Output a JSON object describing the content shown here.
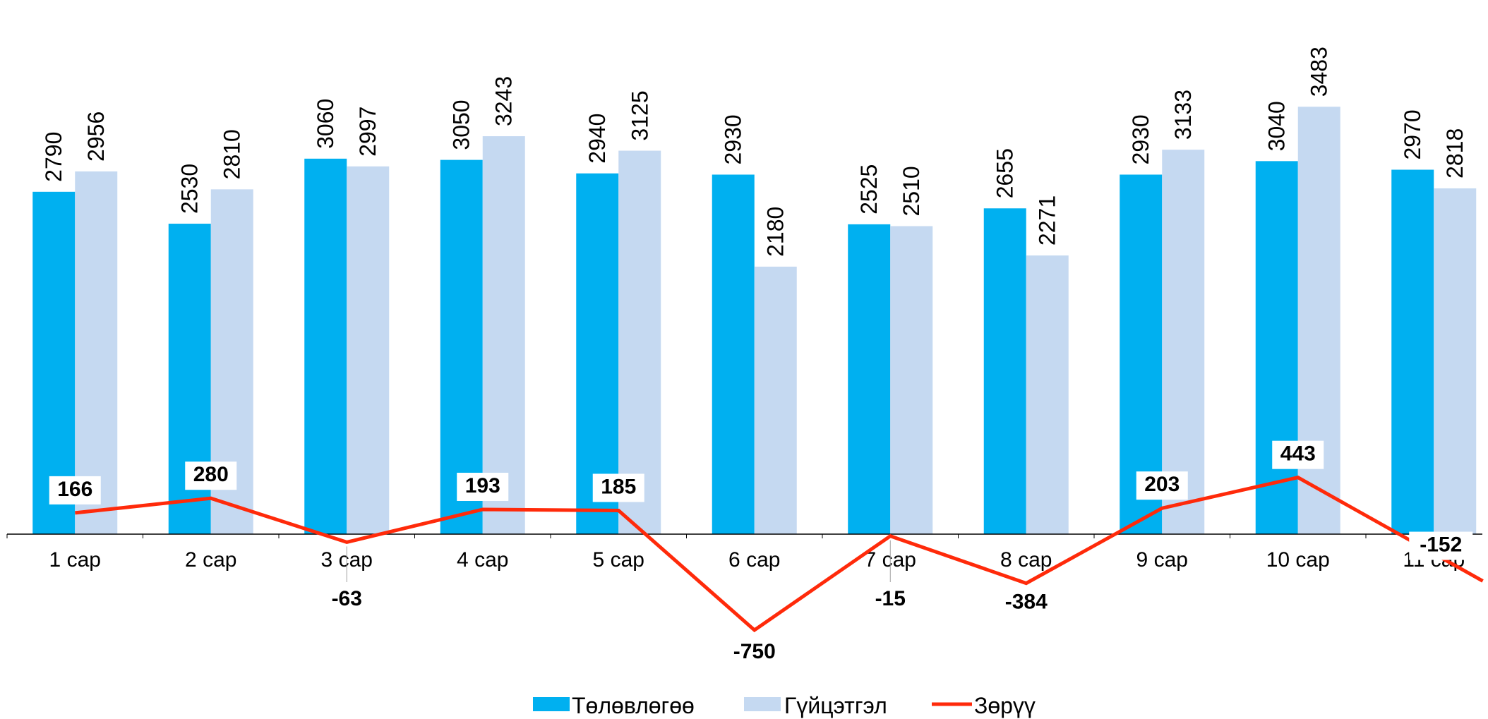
{
  "chart_data": {
    "type": "bar",
    "categories": [
      "1 сар",
      "2 сар",
      "3 сар",
      "4 сар",
      "5 сар",
      "6 сар",
      "7 сар",
      "8 сар",
      "9 сар",
      "10 сар",
      "11 сар"
    ],
    "series": [
      {
        "name": "Төлөвлөгөө",
        "type": "bar",
        "color": "#00b0f0",
        "values": [
          2790,
          2530,
          3060,
          3050,
          2940,
          2930,
          2525,
          2655,
          2930,
          3040,
          2970
        ]
      },
      {
        "name": "Гүйцэтгэл",
        "type": "bar",
        "color": "#c5d9f1",
        "values": [
          2956,
          2810,
          2997,
          3243,
          3125,
          2180,
          2510,
          2271,
          3133,
          3483,
          2818
        ]
      },
      {
        "name": "Зөрүү",
        "type": "line",
        "color": "#ff2a0a",
        "values": [
          166,
          280,
          -63,
          193,
          185,
          -750,
          -15,
          -384,
          203,
          443,
          -152
        ]
      }
    ],
    "legend_position": "bottom",
    "grid": false
  }
}
